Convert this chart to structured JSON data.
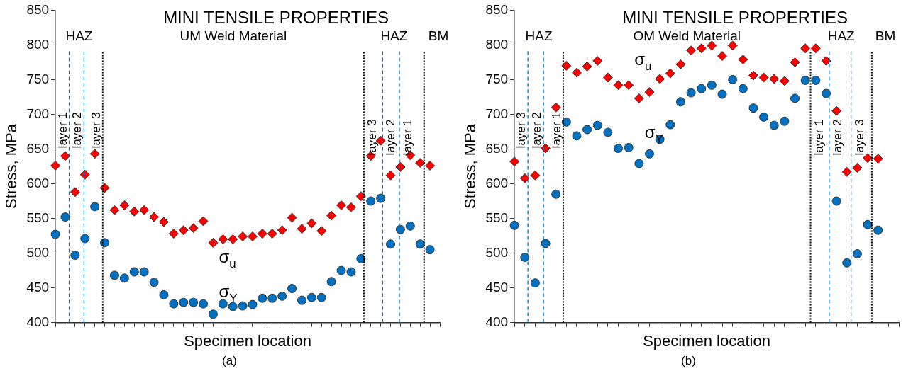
{
  "chart_data": [
    {
      "type": "scatter",
      "title": "MINI TENSILE PROPERTIES",
      "xlabel": "Specimen location",
      "ylabel": "Stress, MPa",
      "annotations": [
        "HAZ",
        "UM Weld Material",
        "HAZ",
        "BM",
        "layer 1",
        "layer 2",
        "layer 3",
        "layer 3",
        "layer 2",
        "layer 1",
        "(a)"
      ],
      "categories": [
        null,
        null,
        null,
        null,
        null,
        null,
        null,
        null,
        null,
        null,
        null,
        null,
        null,
        null,
        null,
        null,
        null,
        null,
        null,
        null,
        null,
        null,
        null,
        null,
        null,
        null,
        null,
        null,
        null,
        null,
        null,
        null,
        null,
        null,
        null,
        null,
        null,
        null,
        null,
        null
      ],
      "series": [
        {
          "name": "σ$_{u}$",
          "color": "#ff0000",
          "marker": "diamond",
          "values": [
            626,
            640,
            588,
            613,
            643,
            594,
            562,
            569,
            560,
            562,
            552,
            545,
            528,
            533,
            536,
            546,
            515,
            520,
            520,
            524,
            524,
            528,
            528,
            533,
            551,
            535,
            543,
            532,
            554,
            569,
            566,
            582,
            640,
            662,
            612,
            624,
            641,
            630,
            626,
            null
          ]
        },
        {
          "name": "σ$_{Y}$",
          "color": "#0070c0",
          "marker": "circle",
          "values": [
            527,
            552,
            497,
            521,
            567,
            515,
            468,
            464,
            473,
            473,
            458,
            440,
            427,
            429,
            429,
            427,
            412,
            427,
            423,
            424,
            426,
            435,
            435,
            438,
            449,
            432,
            436,
            436,
            459,
            475,
            473,
            492,
            575,
            579,
            513,
            534,
            539,
            513,
            505,
            null
          ]
        }
      ],
      "ylim": [
        400,
        850
      ],
      "yticks": [
        400,
        450,
        500,
        550,
        600,
        650,
        700,
        750,
        800,
        850
      ],
      "tick_labels": "y"
    },
    {
      "type": "scatter",
      "title": "MINI TENSILE PROPERTIES",
      "xlabel": "Specimen location",
      "ylabel": "Stress, MPa",
      "annotations": [
        "HAZ",
        "OM Weld Material",
        "HAZ",
        "BM",
        "layer 3",
        "layer 2",
        "layer 1",
        "layer 1",
        "layer 2",
        "layer 3",
        "(b)"
      ],
      "categories": [
        null,
        null,
        null,
        null,
        null,
        null,
        null,
        null,
        null,
        null,
        null,
        null,
        null,
        null,
        null,
        null,
        null,
        null,
        null,
        null,
        null,
        null,
        null,
        null,
        null,
        null,
        null,
        null,
        null,
        null,
        null,
        null,
        null,
        null,
        null,
        null,
        null,
        null
      ],
      "series": [
        {
          "name": "σ$_{u}$",
          "color": "#ff0000",
          "marker": "diamond",
          "values": [
            632,
            608,
            612,
            651,
            710,
            770,
            760,
            769,
            777,
            753,
            742,
            742,
            723,
            732,
            751,
            759,
            772,
            792,
            795,
            799,
            784,
            799,
            779,
            756,
            753,
            751,
            748,
            775,
            795,
            795,
            777,
            705,
            617,
            623,
            637,
            636,
            null,
            null
          ]
        },
        {
          "name": "σ$_{Y}$",
          "color": "#0070c0",
          "marker": "circle",
          "values": [
            540,
            494,
            457,
            514,
            585,
            689,
            669,
            678,
            684,
            674,
            651,
            652,
            629,
            643,
            664,
            685,
            718,
            731,
            737,
            742,
            729,
            750,
            737,
            709,
            696,
            684,
            690,
            723,
            749,
            749,
            730,
            575,
            486,
            499,
            541,
            533,
            null,
            null
          ]
        }
      ],
      "ylim": [
        400,
        850
      ],
      "yticks": [
        400,
        450,
        500,
        550,
        600,
        650,
        700,
        750,
        800,
        850
      ],
      "tick_labels": "y"
    }
  ]
}
